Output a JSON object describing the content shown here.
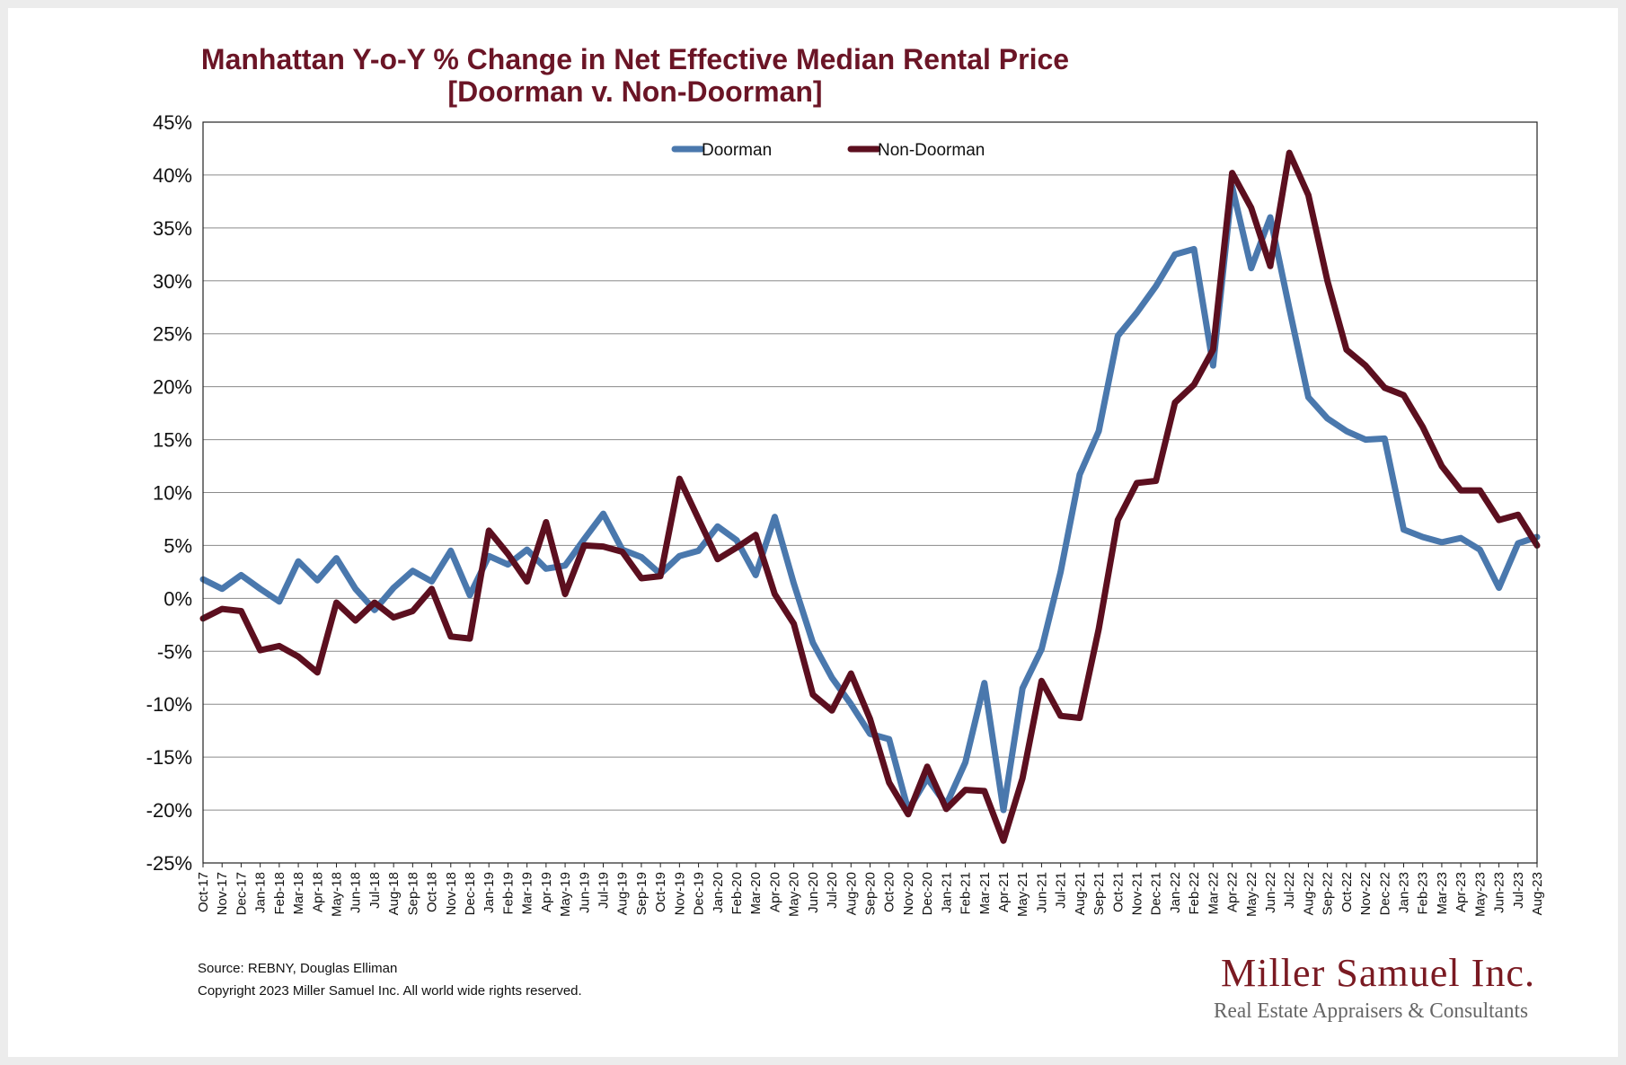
{
  "chart_data": {
    "type": "line",
    "title": "Manhattan Y-o-Y % Change in Net Effective Median Rental Price",
    "subtitle": "[Doorman v. Non-Doorman]",
    "xlabel": "",
    "ylabel": "",
    "ylim": [
      -25,
      45
    ],
    "yticks": [
      "45%",
      "40%",
      "35%",
      "30%",
      "25%",
      "20%",
      "15%",
      "10%",
      "5%",
      "0%",
      "-5%",
      "-10%",
      "-15%",
      "-20%",
      "-25%"
    ],
    "grid": true,
    "legend_position": "top-center",
    "x": [
      "Oct-17",
      "Nov-17",
      "Dec-17",
      "Jan-18",
      "Feb-18",
      "Mar-18",
      "Apr-18",
      "May-18",
      "Jun-18",
      "Jul-18",
      "Aug-18",
      "Sep-18",
      "Oct-18",
      "Nov-18",
      "Dec-18",
      "Jan-19",
      "Feb-19",
      "Mar-19",
      "Apr-19",
      "May-19",
      "Jun-19",
      "Jul-19",
      "Aug-19",
      "Sep-19",
      "Oct-19",
      "Nov-19",
      "Dec-19",
      "Jan-20",
      "Feb-20",
      "Mar-20",
      "Apr-20",
      "May-20",
      "Jun-20",
      "Jul-20",
      "Aug-20",
      "Sep-20",
      "Oct-20",
      "Nov-20",
      "Dec-20",
      "Jan-21",
      "Feb-21",
      "Mar-21",
      "Apr-21",
      "May-21",
      "Jun-21",
      "Jul-21",
      "Aug-21",
      "Sep-21",
      "Oct-21",
      "Nov-21",
      "Dec-21",
      "Jan-22",
      "Feb-22",
      "Mar-22",
      "Apr-22",
      "May-22",
      "Jun-22",
      "Jul-22",
      "Aug-22",
      "Sep-22",
      "Oct-22",
      "Nov-22",
      "Dec-22",
      "Jan-23",
      "Feb-23",
      "Mar-23",
      "Apr-23",
      "May-23",
      "Jun-23",
      "Jul-23",
      "Aug-23"
    ],
    "series": [
      {
        "name": "Doorman",
        "color": "#4a78ad",
        "values": [
          1.8,
          0.9,
          2.2,
          0.9,
          -0.3,
          3.5,
          1.7,
          3.8,
          0.9,
          -1.1,
          1.0,
          2.6,
          1.6,
          4.5,
          0.3,
          4.0,
          3.2,
          4.6,
          2.8,
          3.1,
          5.6,
          8.0,
          4.6,
          3.9,
          2.3,
          4.0,
          4.5,
          6.8,
          5.5,
          2.2,
          7.7,
          1.4,
          -4.2,
          -7.5,
          -10.0,
          -12.8,
          -13.3,
          -20.0,
          -17.0,
          -19.5,
          -15.5,
          -8.0,
          -20.0,
          -8.5,
          -4.8,
          2.5,
          11.7,
          15.8,
          24.8,
          27.0,
          29.5,
          32.5,
          33.0,
          22.0,
          38.9,
          31.2,
          36.0,
          27.4,
          19.0,
          17.0,
          15.8,
          15.0,
          15.1,
          6.5,
          5.8,
          5.3,
          5.7,
          4.6,
          1.0,
          5.2,
          5.8
        ]
      },
      {
        "name": "Non-Doorman",
        "color": "#5c0f1f",
        "values": [
          -1.9,
          -1.0,
          -1.2,
          -4.9,
          -4.5,
          -5.5,
          -7.0,
          -0.4,
          -2.1,
          -0.4,
          -1.8,
          -1.2,
          0.9,
          -3.6,
          -3.8,
          6.4,
          4.2,
          1.6,
          7.2,
          0.4,
          5.0,
          4.9,
          4.4,
          1.9,
          2.1,
          11.3,
          7.5,
          3.7,
          4.8,
          6.0,
          0.4,
          -2.4,
          -9.1,
          -10.6,
          -7.1,
          -11.4,
          -17.4,
          -20.4,
          -15.9,
          -19.9,
          -18.1,
          -18.2,
          -22.9,
          -17.0,
          -7.8,
          -11.1,
          -11.3,
          -2.9,
          7.4,
          10.9,
          11.1,
          18.5,
          20.2,
          23.5,
          40.2,
          36.9,
          31.4,
          42.1,
          38.1,
          30.0,
          23.5,
          22.0,
          19.9,
          19.2,
          16.2,
          12.5,
          10.2,
          10.2,
          7.4,
          7.9,
          5.0
        ]
      }
    ]
  },
  "footer": {
    "source": "Source: REBNY, Douglas Elliman",
    "copyright": "Copyright 2023 Miller Samuel Inc.  All world wide rights reserved."
  },
  "logo": {
    "name": "Miller Samuel Inc.",
    "tagline": "Real Estate Appraisers & Consultants"
  }
}
